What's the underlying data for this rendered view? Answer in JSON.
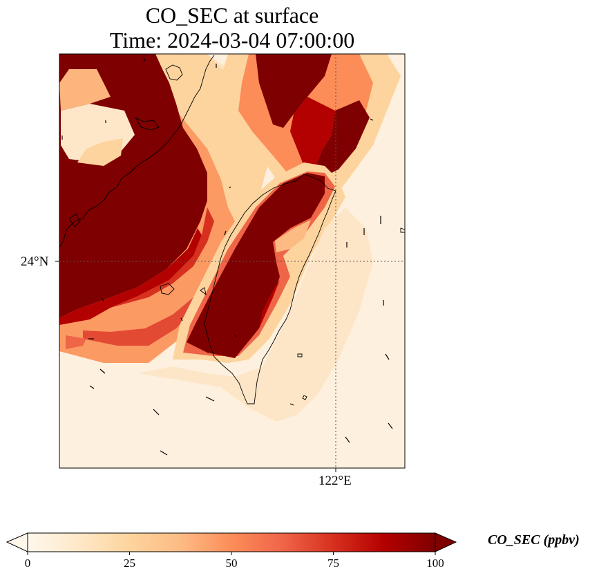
{
  "title": {
    "line1": "CO_SEC at surface",
    "line2": "Time: 2024-03-04 07:00:00"
  },
  "axes": {
    "lat_tick": "24°N",
    "lon_tick": "122°E"
  },
  "colorbar": {
    "label": "CO_SEC (ppbv)",
    "colormap": "OrRd",
    "stops": [
      "#fff7ec",
      "#fee8c8",
      "#fdd49e",
      "#fdbb84",
      "#fc8d59",
      "#ef6548",
      "#d7301f",
      "#b30000",
      "#7f0000"
    ],
    "ticks": [
      "0",
      "25",
      "50",
      "75",
      "100"
    ],
    "extend": "both"
  },
  "map_data": {
    "variable": "CO_SEC",
    "units": "ppbv",
    "level": "surface",
    "vmin": 0,
    "vmax": 100,
    "features": [
      "coastline",
      "wind vectors",
      "gridlines"
    ]
  }
}
